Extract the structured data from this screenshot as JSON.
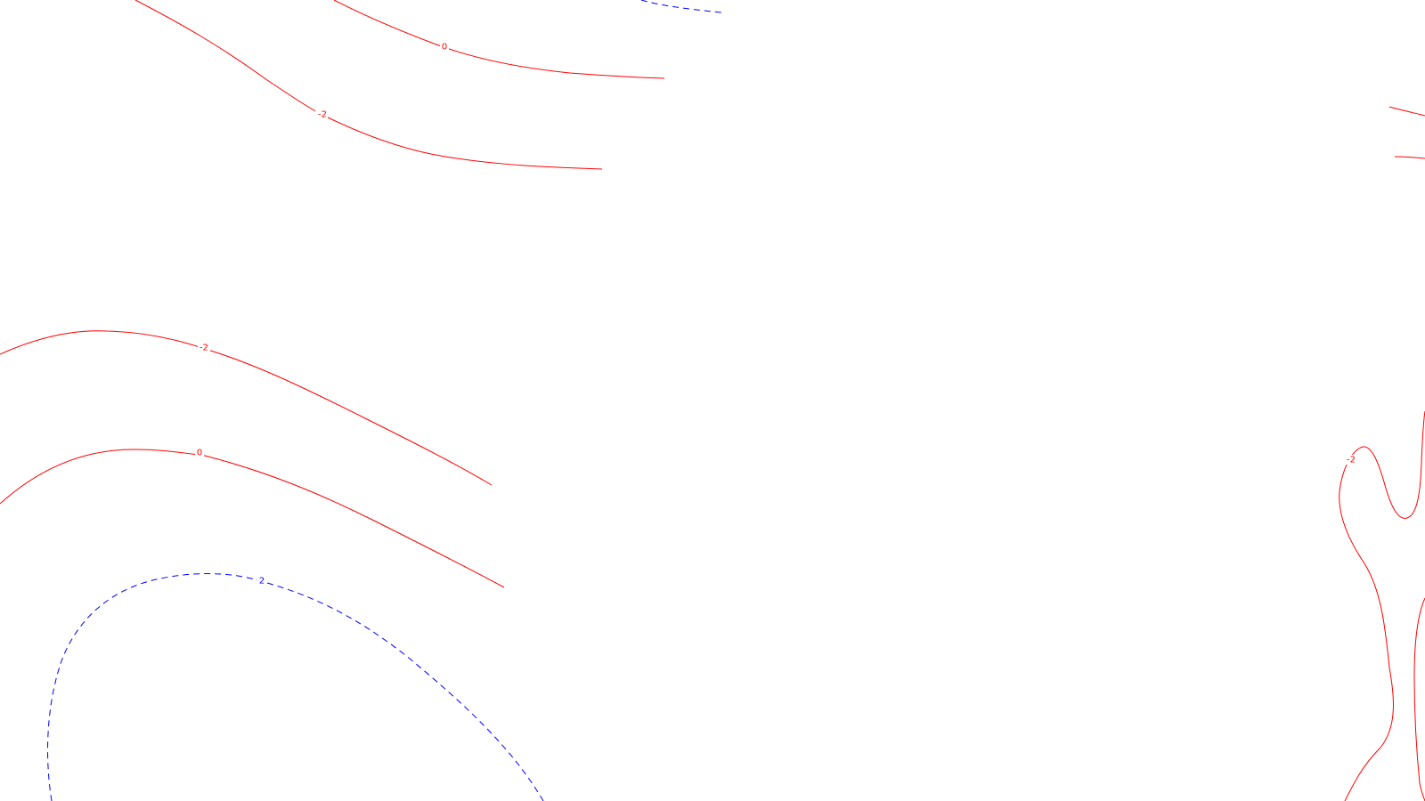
{
  "colors": {
    "background": "#ffffff",
    "negative_contour": "#ff0000",
    "positive_contour": "#0000ff"
  },
  "contours": [
    {
      "id": "contour-upper-neg2",
      "level": "-2",
      "sign": "negative",
      "label": "-2"
    },
    {
      "id": "contour-upper-0",
      "level": "0",
      "sign": "zero",
      "label": "0"
    },
    {
      "id": "contour-top-blue",
      "level": "2",
      "sign": "positive",
      "label": null
    },
    {
      "id": "contour-left-neg2",
      "level": "-2",
      "sign": "negative",
      "label": "-2"
    },
    {
      "id": "contour-left-0",
      "level": "0",
      "sign": "zero",
      "label": "0"
    },
    {
      "id": "contour-left-2",
      "level": "2",
      "sign": "positive",
      "label": "2"
    },
    {
      "id": "contour-right-neg2-loop",
      "level": "-2",
      "sign": "negative",
      "label": "-2"
    },
    {
      "id": "contour-right-edge-a",
      "level": "-2",
      "sign": "negative",
      "label": null
    },
    {
      "id": "contour-right-edge-b",
      "level": "-2",
      "sign": "negative",
      "label": null
    },
    {
      "id": "contour-right-edge-c",
      "level": "-2",
      "sign": "negative",
      "label": null
    }
  ]
}
